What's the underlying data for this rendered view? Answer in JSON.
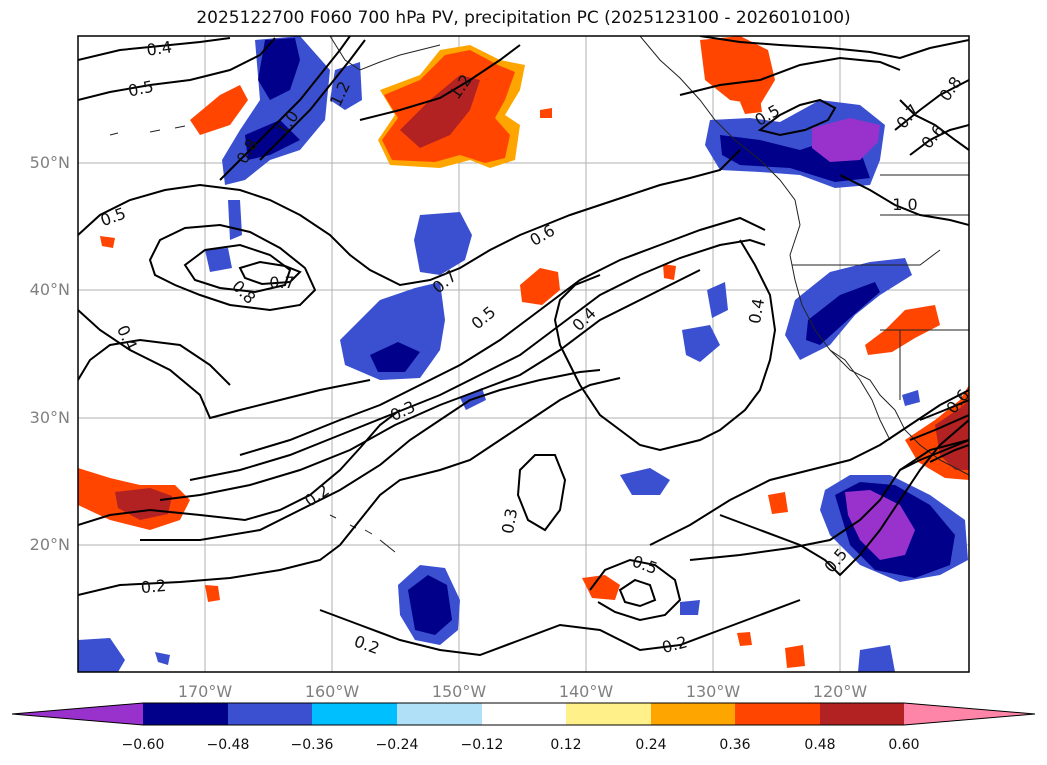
{
  "title": "2025122700 F060 700 hPa PV, precipitation PC (2025123100 - 2026010100)",
  "lat_labels": [
    "50°N",
    "40°N",
    "30°N",
    "20°N"
  ],
  "lon_labels": [
    "170°W",
    "160°W",
    "150°W",
    "140°W",
    "130°W",
    "120°W"
  ],
  "colorbar": {
    "ticks": [
      "−0.60",
      "−0.48",
      "−0.36",
      "−0.24",
      "−0.12",
      "0.12",
      "0.24",
      "0.36",
      "0.48",
      "0.60"
    ],
    "colors": [
      "#9932cc",
      "#00008b",
      "#3a50d0",
      "#00bfff",
      "#b0e0f8",
      "#ffffff",
      "#fff08a",
      "#ffa500",
      "#ff4500",
      "#b22222",
      "#ff85a8"
    ]
  },
  "contour_labels": [
    "0.4",
    "0.5",
    "0.8",
    "1.0",
    "1.2",
    "0.5",
    "1.2",
    "0.8",
    "0.7",
    "0.6",
    "0.5",
    "0.7",
    "0.8",
    "0.6",
    "0.7",
    "0.5",
    "0.4",
    "0.4",
    "1.0",
    "0.4",
    "0.3",
    "0.2",
    "0.3",
    "0.5",
    "0.5",
    "0.6",
    "0.2",
    "0.2",
    "0.2"
  ],
  "chart_data": {
    "type": "map",
    "field_contours": "700 hPa PV",
    "field_shaded": "precipitation PC",
    "lat_range": [
      10,
      60
    ],
    "lon_range": [
      -180,
      -110
    ],
    "contour_levels": [
      0.2,
      0.3,
      0.4,
      0.5,
      0.6,
      0.7,
      0.8,
      1.0,
      1.2
    ],
    "color_levels": [
      -0.6,
      -0.48,
      -0.36,
      -0.24,
      -0.12,
      0.12,
      0.24,
      0.36,
      0.48,
      0.6
    ],
    "colorbar_extend": "both"
  }
}
